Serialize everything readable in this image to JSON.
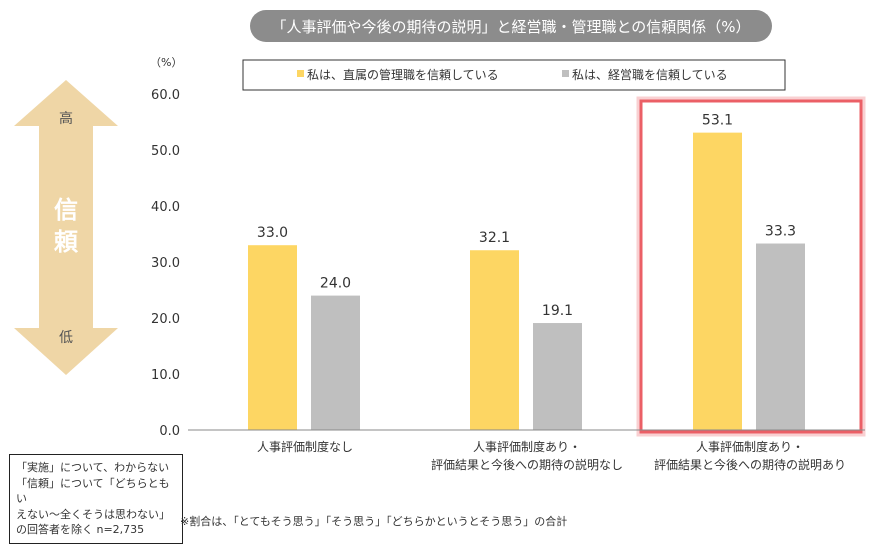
{
  "chart_data": {
    "type": "bar",
    "title": "「人事評価や今後の期待の説明」と経営職・管理職との信頼関係（%）",
    "ylabel": "（%）",
    "ylim": [
      0,
      60
    ],
    "yticks": [
      "0.0",
      "10.0",
      "20.0",
      "30.0",
      "40.0",
      "50.0",
      "60.0"
    ],
    "grid": false,
    "legend_position": "top",
    "categories": [
      [
        "人事評価制度なし"
      ],
      [
        "人事評価制度あり・",
        "評価結果と今後への期待の説明なし"
      ],
      [
        "人事評価制度あり・",
        "評価結果と今後への期待の説明あり"
      ]
    ],
    "series": [
      {
        "name": "私は、直属の管理職を信頼している",
        "color": "#FDD663",
        "values": [
          33.0,
          32.1,
          53.1
        ]
      },
      {
        "name": "私は、経営職を信頼している",
        "color": "#BFBFBF",
        "values": [
          24.0,
          19.1,
          33.3
        ]
      }
    ],
    "highlighted_category": 2,
    "highlight_color": "#E8434B"
  },
  "arrow": {
    "high": "高",
    "label": "信頼",
    "low": "低",
    "color": "#EFD6A6"
  },
  "note": [
    "「実施」について、わからない",
    "「信頼」について「どちらともい",
    "えない～全くそうは思わない」",
    "の回答者を除く n=2,735"
  ],
  "footnote": "※割合は、「とてもそう思う」「そう思う」「どちらかというとそう思う」の合計"
}
